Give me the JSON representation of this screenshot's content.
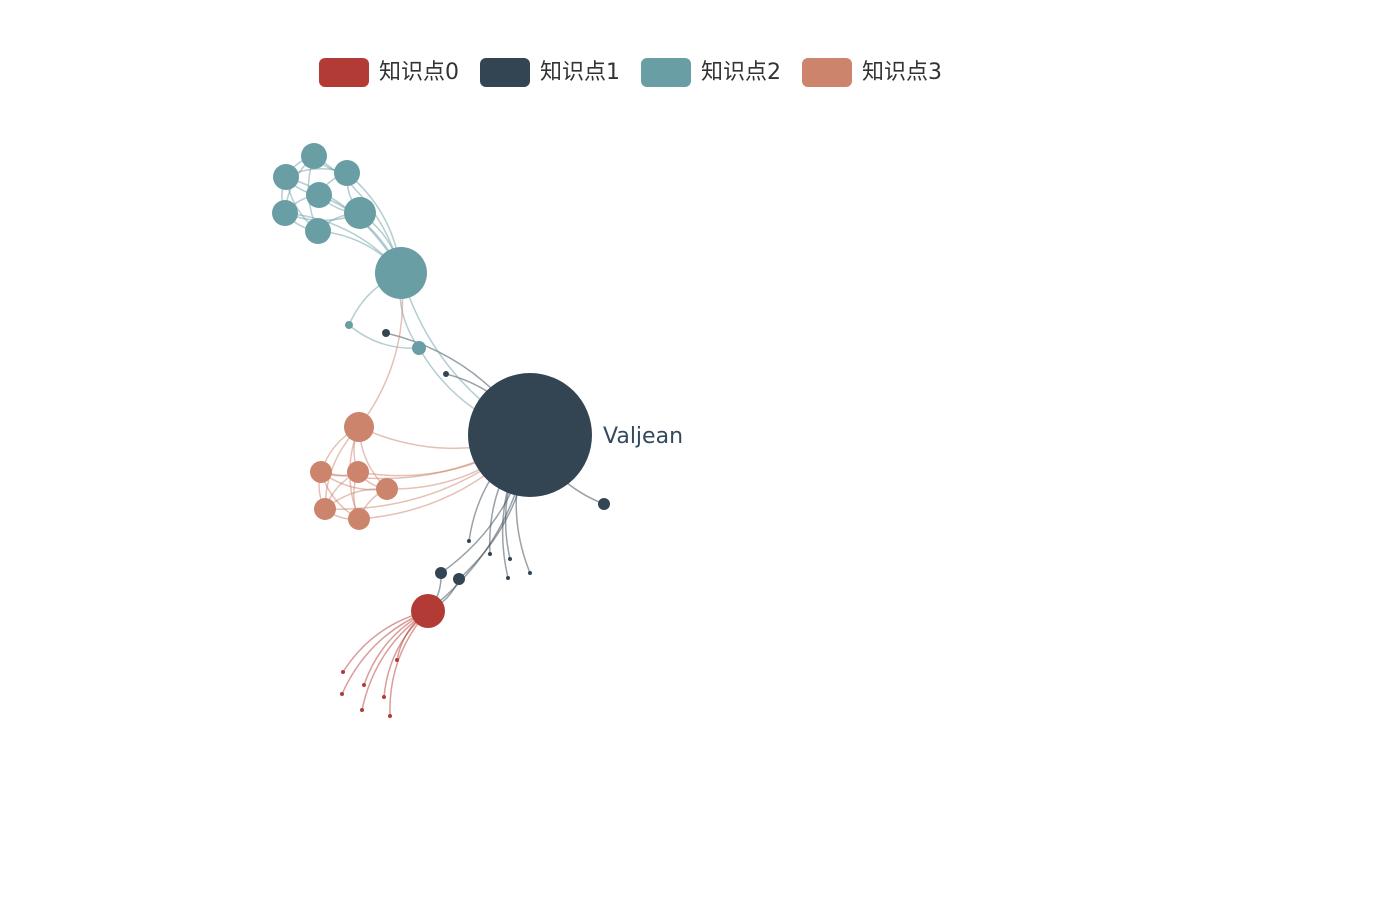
{
  "legend": {
    "items": [
      {
        "label": "知识点0",
        "color": "#b33b35"
      },
      {
        "label": "知识点1",
        "color": "#334553"
      },
      {
        "label": "知识点2",
        "color": "#6a9ea5"
      },
      {
        "label": "知识点3",
        "color": "#cc846c"
      }
    ]
  },
  "graph": {
    "labeled_node": "Valjean"
  }
}
